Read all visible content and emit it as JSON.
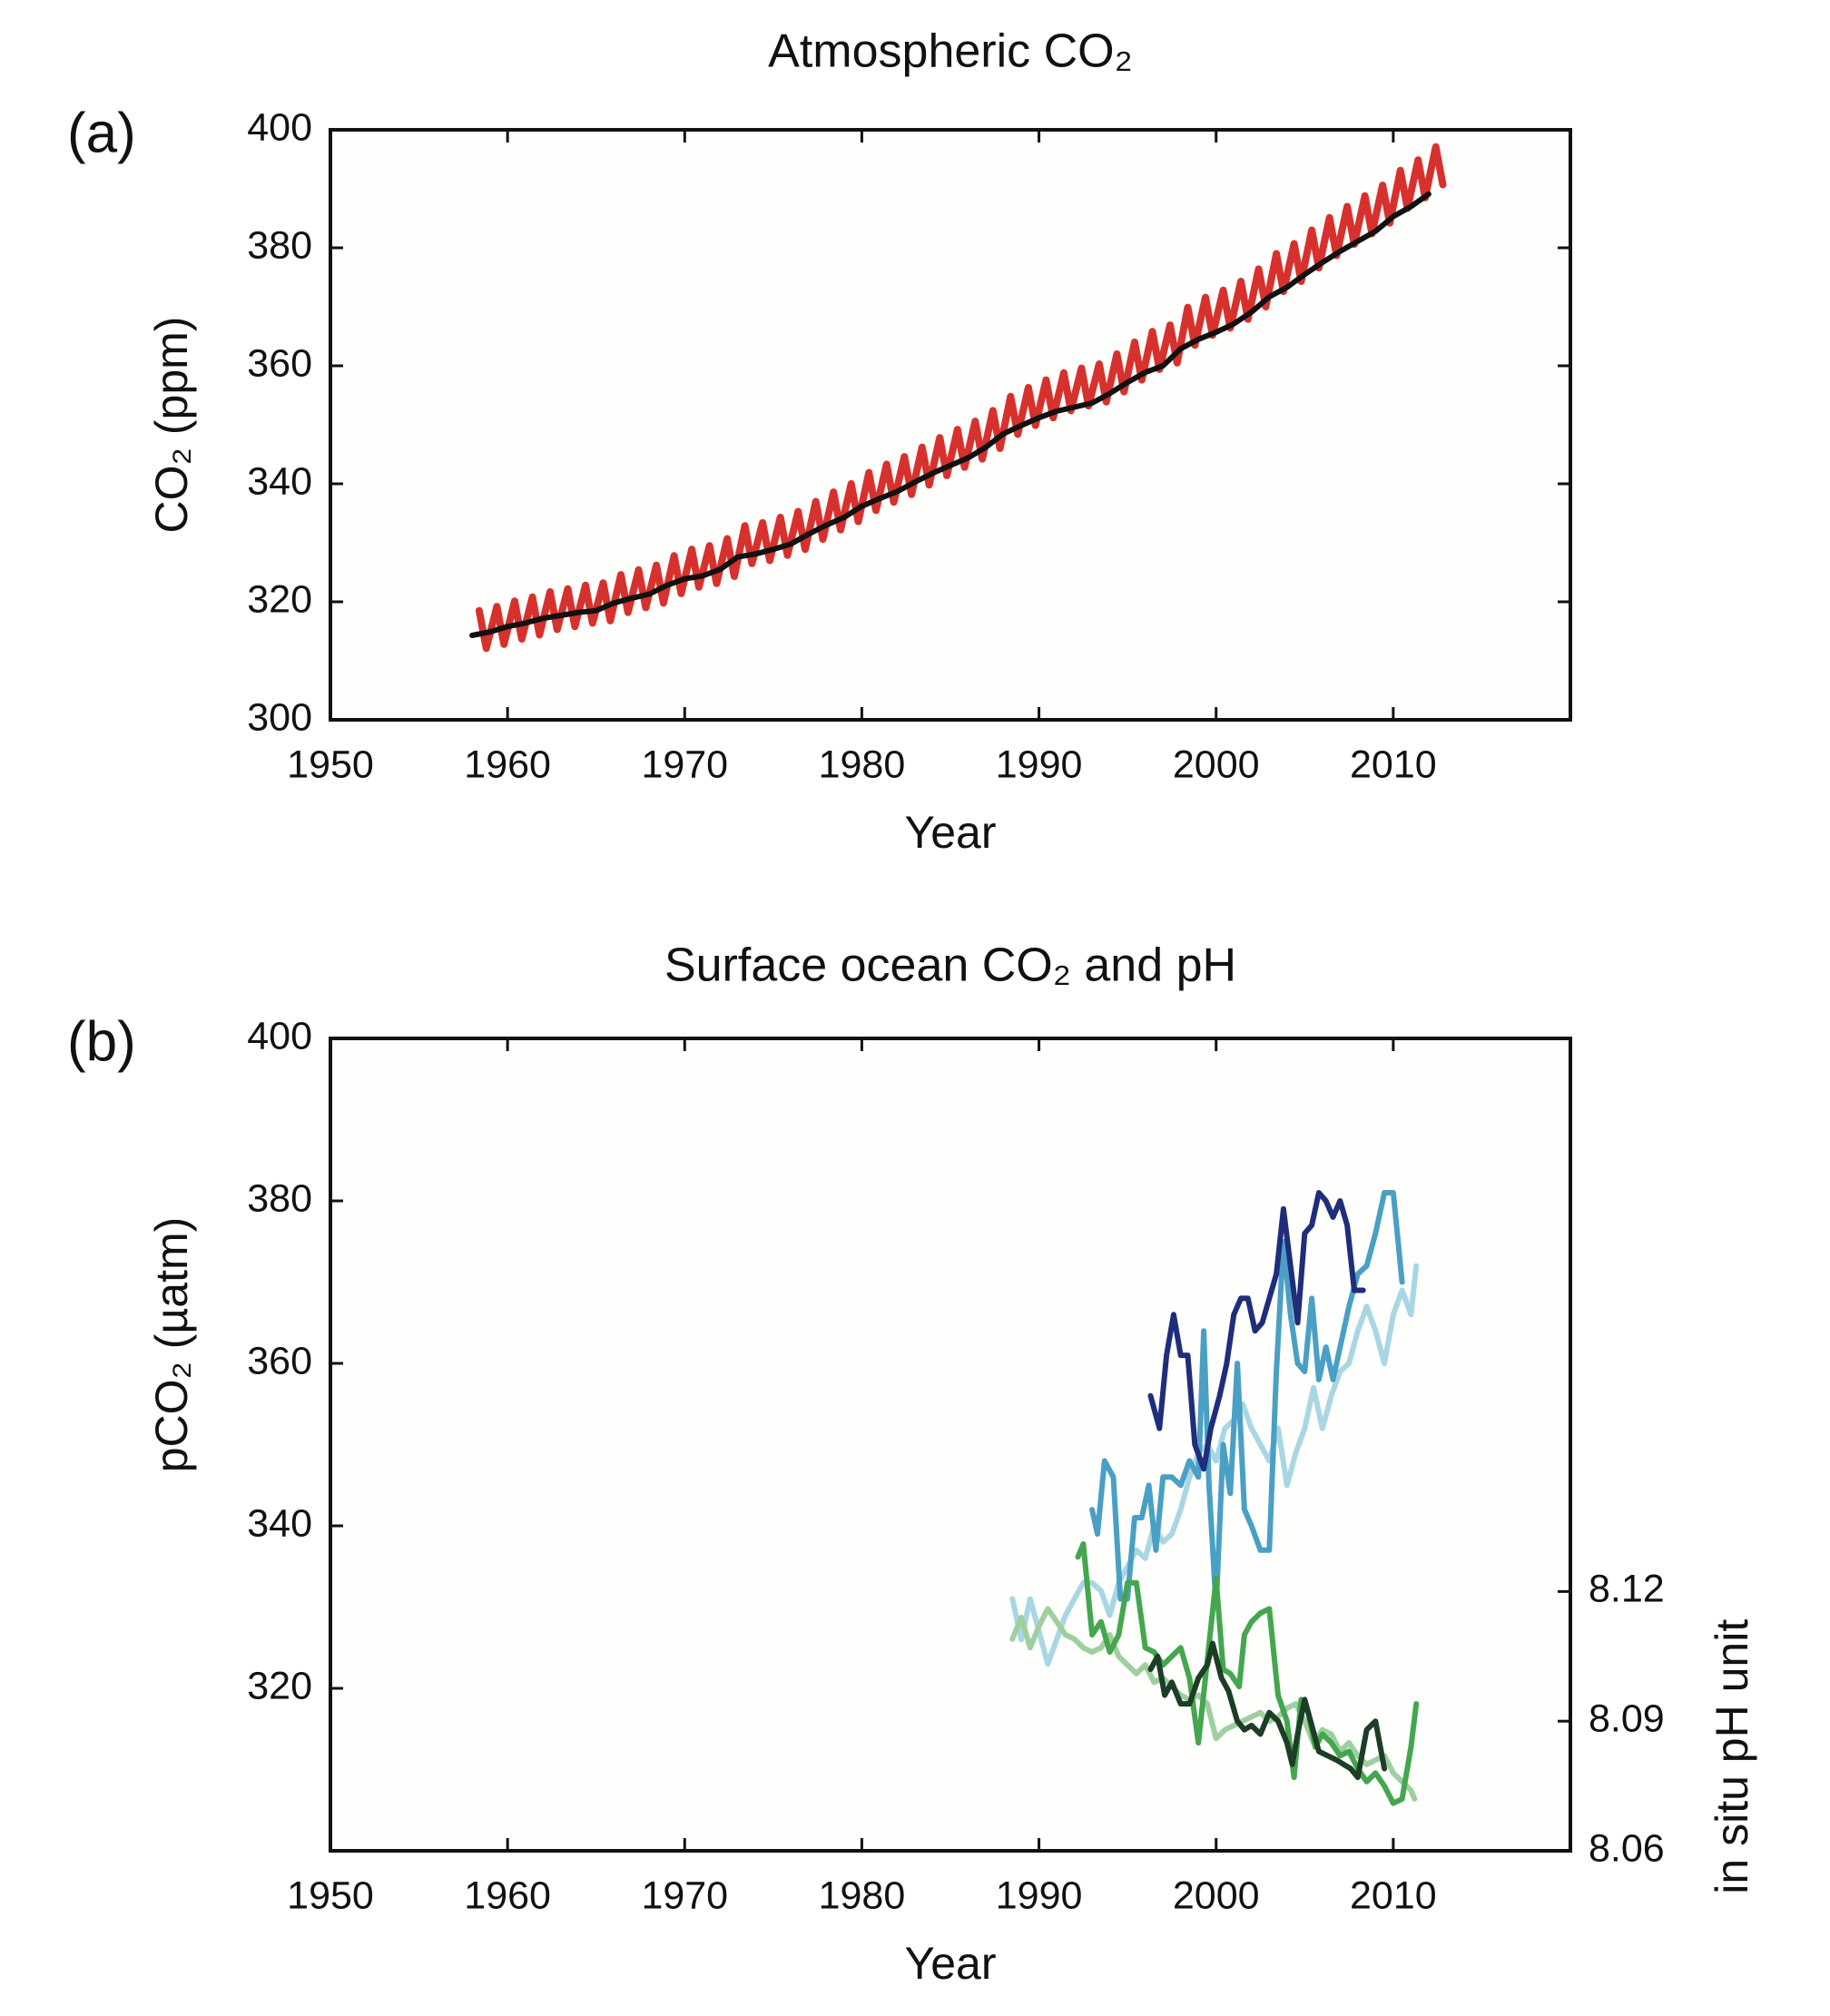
{
  "chart_data": [
    {
      "type": "line",
      "panel_label": "(a)",
      "title": "Atmospheric CO₂",
      "x_label": "Year",
      "y_label": "CO₂ (ppm)",
      "xlim": [
        1950,
        2020
      ],
      "xticks": [
        1950,
        1960,
        1970,
        1980,
        1990,
        2000,
        2010
      ],
      "ylim": [
        300,
        400
      ],
      "yticks": [
        300,
        320,
        340,
        360,
        380,
        400
      ],
      "series": [
        {
          "color": "#d7312e",
          "x": [
            1958.4,
            1958.8,
            1959.4,
            1959.8,
            1960.4,
            1960.8,
            1961.4,
            1961.8,
            1962.4,
            1962.8,
            1963.4,
            1963.8,
            1964.4,
            1964.8,
            1965.4,
            1965.8,
            1966.4,
            1966.8,
            1967.4,
            1967.8,
            1968.4,
            1968.8,
            1969.4,
            1969.8,
            1970.4,
            1970.8,
            1971.4,
            1971.8,
            1972.4,
            1972.8,
            1973.4,
            1973.8,
            1974.4,
            1974.8,
            1975.4,
            1975.8,
            1976.4,
            1976.8,
            1977.4,
            1977.8,
            1978.4,
            1978.8,
            1979.4,
            1979.8,
            1980.4,
            1980.8,
            1981.4,
            1981.8,
            1982.4,
            1982.8,
            1983.4,
            1983.8,
            1984.4,
            1984.8,
            1985.4,
            1985.8,
            1986.4,
            1986.8,
            1987.4,
            1987.8,
            1988.4,
            1988.8,
            1989.4,
            1989.8,
            1990.4,
            1990.8,
            1991.4,
            1991.8,
            1992.4,
            1992.8,
            1993.4,
            1993.8,
            1994.4,
            1994.8,
            1995.4,
            1995.8,
            1996.4,
            1996.8,
            1997.4,
            1997.8,
            1998.4,
            1998.8,
            1999.4,
            1999.8,
            2000.4,
            2000.8,
            2001.4,
            2001.8,
            2002.4,
            2002.8,
            2003.4,
            2003.8,
            2004.4,
            2004.8,
            2005.4,
            2005.8,
            2006.4,
            2006.8,
            2007.4,
            2007.8,
            2008.4,
            2008.8,
            2009.4,
            2009.8,
            2010.4,
            2010.8,
            2011.4,
            2011.8,
            2012.4,
            2012.8
          ],
          "values": [
            318.5,
            312.1,
            319.2,
            312.8,
            320.1,
            313.7,
            320.8,
            314.4,
            321.7,
            315.3,
            322.2,
            315.8,
            322.8,
            316.4,
            323.2,
            316.8,
            324.6,
            318.2,
            325.4,
            319.0,
            326.2,
            319.8,
            327.8,
            321.4,
            328.9,
            322.5,
            329.5,
            323.1,
            330.7,
            324.3,
            332.9,
            326.5,
            333.4,
            327.0,
            334.3,
            327.9,
            335.3,
            328.9,
            337.0,
            330.6,
            338.6,
            332.2,
            340.0,
            333.6,
            341.9,
            335.5,
            343.3,
            336.9,
            344.6,
            338.2,
            346.2,
            339.8,
            347.8,
            341.4,
            349.2,
            342.8,
            350.6,
            344.2,
            352.4,
            346.0,
            354.8,
            348.4,
            356.3,
            349.9,
            357.6,
            351.2,
            358.8,
            352.4,
            359.6,
            353.2,
            360.3,
            353.9,
            362.0,
            355.6,
            364.0,
            357.6,
            365.8,
            359.4,
            366.9,
            360.5,
            369.9,
            363.5,
            371.6,
            365.2,
            372.8,
            366.4,
            374.3,
            367.9,
            376.4,
            370.0,
            379.0,
            372.6,
            380.7,
            374.3,
            383.0,
            376.6,
            385.1,
            378.7,
            387.0,
            380.6,
            388.8,
            382.4,
            390.6,
            384.2,
            393.1,
            386.7,
            394.9,
            388.5,
            397.1,
            390.7
          ]
        },
        {
          "color": "#111111",
          "x": [
            1958,
            1959,
            1960,
            1961,
            1962,
            1963,
            1964,
            1965,
            1966,
            1967,
            1968,
            1969,
            1970,
            1971,
            1972,
            1973,
            1974,
            1975,
            1976,
            1977,
            1978,
            1979,
            1980,
            1981,
            1982,
            1983,
            1984,
            1985,
            1986,
            1987,
            1988,
            1989,
            1990,
            1991,
            1992,
            1993,
            1994,
            1995,
            1996,
            1997,
            1998,
            1999,
            2000,
            2001,
            2002,
            2003,
            2004,
            2005,
            2006,
            2007,
            2008,
            2009,
            2010,
            2011,
            2012
          ],
          "values": [
            314.3,
            314.9,
            315.8,
            316.4,
            317.2,
            317.7,
            318.2,
            318.5,
            319.8,
            320.6,
            321.3,
            322.8,
            323.9,
            324.4,
            325.5,
            327.6,
            328.1,
            328.9,
            329.8,
            331.5,
            333.0,
            334.3,
            336.2,
            337.5,
            338.7,
            340.3,
            341.8,
            343.1,
            344.4,
            346.2,
            348.5,
            349.9,
            351.2,
            352.3,
            353.0,
            353.7,
            355.3,
            357.2,
            358.9,
            360.0,
            362.9,
            364.5,
            365.7,
            367.1,
            369.1,
            371.7,
            373.3,
            375.5,
            377.5,
            379.4,
            381.1,
            382.8,
            385.3,
            387.0,
            389.1
          ]
        }
      ]
    },
    {
      "type": "line",
      "panel_label": "(b)",
      "title": "Surface ocean CO₂ and pH",
      "x_label": "Year",
      "y_label": "pCO₂ (µatm)",
      "y2_label": "in situ pH unit",
      "xlim": [
        1950,
        2020
      ],
      "xticks": [
        1950,
        1960,
        1970,
        1980,
        1990,
        2000,
        2010
      ],
      "ylim": [
        300,
        400
      ],
      "yticks": [
        320,
        340,
        360,
        380,
        400
      ],
      "y2lim": [
        8.06,
        8.248
      ],
      "y2ticks": [
        8.06,
        8.09,
        8.12
      ],
      "series": [
        {
          "color": "#a9d6e4",
          "x": [
            1988.5,
            1989,
            1989.5,
            1990,
            1990.5,
            1991,
            1991.5,
            1992,
            1992.5,
            1993,
            1993.5,
            1994,
            1994.5,
            1995,
            1995.5,
            1996,
            1996.5,
            1997,
            1997.5,
            1998,
            1998.5,
            1999,
            1999.5,
            2000,
            2000.5,
            2001,
            2001.5,
            2002,
            2002.5,
            2003,
            2003.5,
            2004,
            2004.5,
            2005,
            2005.5,
            2006,
            2006.5,
            2007,
            2007.5,
            2008,
            2008.5,
            2009,
            2009.5,
            2010,
            2010.5,
            2011,
            2011.3
          ],
          "values": [
            331,
            326,
            331,
            327,
            323,
            326,
            329,
            331,
            333,
            333,
            332,
            329,
            333,
            335,
            337,
            336,
            340,
            338,
            339,
            342,
            346,
            349,
            350,
            348,
            352,
            353,
            355,
            352,
            350,
            348,
            352,
            345,
            349,
            352,
            357,
            352,
            356,
            359,
            360,
            364,
            367,
            364,
            360,
            366,
            369,
            366,
            372
          ]
        },
        {
          "color": "#4a9fc4",
          "x": [
            1993,
            1993.3,
            1993.7,
            1994.2,
            1994.6,
            1995,
            1995.4,
            1995.8,
            1996.2,
            1996.6,
            1997,
            1997.5,
            1998,
            1998.5,
            1999,
            1999.3,
            1999.6,
            2000,
            2000.4,
            2000.8,
            2001.2,
            2001.6,
            2002,
            2002.5,
            2003,
            2003.4,
            2003.8,
            2004.2,
            2004.6,
            2005,
            2005.4,
            2005.8,
            2006.2,
            2006.6,
            2007,
            2007.5,
            2008,
            2008.5,
            2009,
            2009.5,
            2010,
            2010.5
          ],
          "values": [
            342,
            339,
            348,
            346,
            331,
            331,
            341,
            341,
            345,
            337,
            346,
            346,
            345,
            348,
            346,
            364,
            345,
            330,
            350,
            344,
            360,
            342,
            340,
            337,
            337,
            359,
            375,
            366,
            360,
            359,
            368,
            358,
            362,
            358,
            362,
            367,
            371,
            372,
            376,
            381,
            381,
            370
          ]
        },
        {
          "color": "#1f2d7a",
          "x": [
            1996.3,
            1996.8,
            1997.2,
            1997.6,
            1998,
            1998.4,
            1998.8,
            1999.3,
            1999.7,
            2000.2,
            2000.6,
            2001,
            2001.4,
            2001.8,
            2002.2,
            2002.6,
            2003,
            2003.4,
            2003.8,
            2004.2,
            2004.6,
            2005,
            2005.4,
            2005.8,
            2006.2,
            2006.6,
            2007,
            2007.4,
            2007.8,
            2008.3
          ],
          "values": [
            356,
            352,
            361,
            366,
            361,
            361,
            350,
            347,
            352,
            356,
            360,
            366,
            368,
            368,
            364,
            365,
            368,
            371,
            379,
            372,
            365,
            376,
            377,
            381,
            380,
            378,
            380,
            377,
            369,
            369
          ]
        },
        {
          "color": "#9fcfa0",
          "axis": "y2",
          "x": [
            1988.5,
            1989,
            1989.5,
            1990,
            1990.5,
            1991,
            1991.5,
            1992,
            1992.5,
            1993,
            1993.5,
            1994,
            1994.5,
            1995,
            1995.5,
            1996,
            1996.5,
            1997,
            1997.5,
            1998,
            1998.5,
            1999,
            1999.5,
            2000,
            2000.5,
            2001,
            2001.5,
            2002,
            2002.5,
            2003,
            2003.5,
            2004,
            2004.5,
            2005,
            2005.5,
            2006,
            2006.5,
            2007,
            2007.5,
            2008,
            2008.5,
            2009,
            2009.5,
            2010,
            2010.5,
            2011,
            2011.2
          ],
          "values": [
            8.109,
            8.114,
            8.107,
            8.112,
            8.116,
            8.113,
            8.11,
            8.109,
            8.107,
            8.106,
            8.107,
            8.11,
            8.105,
            8.103,
            8.101,
            8.103,
            8.099,
            8.1,
            8.098,
            8.096,
            8.095,
            8.096,
            8.094,
            8.086,
            8.088,
            8.089,
            8.09,
            8.091,
            8.092,
            8.09,
            8.091,
            8.093,
            8.094,
            8.09,
            8.085,
            8.088,
            8.087,
            8.083,
            8.085,
            8.082,
            8.08,
            8.081,
            8.082,
            8.078,
            8.076,
            8.074,
            8.072
          ]
        },
        {
          "color": "#44a64f",
          "axis": "y2",
          "x": [
            1992.2,
            1992.5,
            1993,
            1993.5,
            1994,
            1994.5,
            1995,
            1995.5,
            1996,
            1996.5,
            1997,
            1997.5,
            1998,
            1998.5,
            1999,
            1999.5,
            2000,
            2000.4,
            2000.8,
            2001.3,
            2001.6,
            2002,
            2002.5,
            2003,
            2003.5,
            2004,
            2004.4,
            2004.8,
            2005.2,
            2005.6,
            2006,
            2006.5,
            2007,
            2007.5,
            2008,
            2008.5,
            2009,
            2009.5,
            2010,
            2010.5,
            2011,
            2011.3
          ],
          "values": [
            8.128,
            8.131,
            8.11,
            8.113,
            8.106,
            8.11,
            8.122,
            8.122,
            8.107,
            8.106,
            8.103,
            8.105,
            8.107,
            8.1,
            8.085,
            8.104,
            8.123,
            8.102,
            8.101,
            8.098,
            8.11,
            8.113,
            8.115,
            8.116,
            8.096,
            8.09,
            8.077,
            8.095,
            8.092,
            8.084,
            8.087,
            8.085,
            8.082,
            8.083,
            8.079,
            8.076,
            8.078,
            8.075,
            8.071,
            8.072,
            8.084,
            8.094
          ]
        },
        {
          "color": "#1c3d26",
          "axis": "y2",
          "x": [
            1996.3,
            1996.7,
            1997.1,
            1997.5,
            1998,
            1998.5,
            1999,
            1999.5,
            1999.8,
            2000.3,
            2000.7,
            2001.2,
            2001.6,
            2002,
            2002.5,
            2003,
            2003.5,
            2004,
            2004.3,
            2004.6,
            2005,
            2005.4,
            2005.8,
            2006.3,
            2006.8,
            2007.2,
            2007.6,
            2008,
            2008.5,
            2009,
            2009.5
          ],
          "values": [
            8.102,
            8.105,
            8.096,
            8.099,
            8.094,
            8.094,
            8.1,
            8.103,
            8.108,
            8.1,
            8.097,
            8.09,
            8.088,
            8.089,
            8.087,
            8.092,
            8.09,
            8.085,
            8.08,
            8.087,
            8.095,
            8.089,
            8.083,
            8.082,
            8.081,
            8.08,
            8.079,
            8.077,
            8.088,
            8.09,
            8.079
          ]
        }
      ]
    }
  ]
}
